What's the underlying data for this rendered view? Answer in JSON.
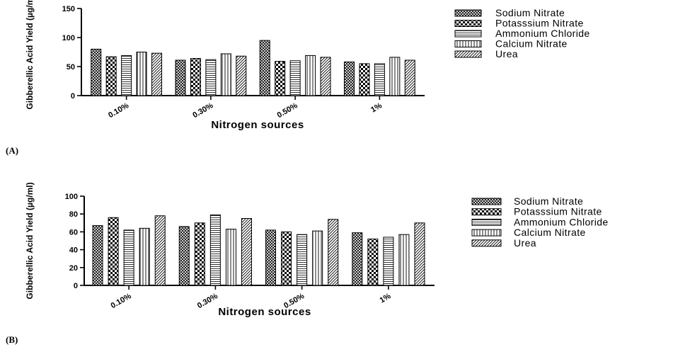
{
  "panels": [
    {
      "label": "(A)",
      "chart_data": {
        "type": "bar",
        "title": "",
        "xlabel": "Nitrogen sources",
        "ylabel": "Gibberellic Acid Yield  (µg/ml)",
        "ylim": [
          0,
          150
        ],
        "yticks": [
          "0",
          "50",
          "100",
          "150"
        ],
        "ytick_values": [
          0,
          50,
          100,
          150
        ],
        "categories": [
          "0.10%",
          "0.30%",
          "0.50%",
          "1%"
        ],
        "series": [
          {
            "name": "Sodium Nitrate",
            "values": [
              80,
              61,
              95,
              58
            ],
            "pattern": "crosshatch"
          },
          {
            "name": " Potasssium Nitrate",
            "values": [
              67,
              64,
              59,
              55
            ],
            "pattern": "checker"
          },
          {
            "name": "Ammonium Chloride",
            "values": [
              69,
              62,
              60,
              55
            ],
            "pattern": "horizontal"
          },
          {
            "name": "Calcium Nitrate",
            "values": [
              75,
              72,
              69,
              66
            ],
            "pattern": "vertical"
          },
          {
            "name": "Urea",
            "values": [
              73,
              68,
              66,
              61
            ],
            "pattern": "diagonal"
          }
        ],
        "grid": false,
        "legend_position": "right"
      }
    },
    {
      "label": "(B)",
      "chart_data": {
        "type": "bar",
        "title": "",
        "xlabel": "Nitrogen sources",
        "ylabel": "Gibberellic Acid Yield  (µg/ml)",
        "ylim": [
          0,
          100
        ],
        "yticks": [
          "0",
          "20",
          "40",
          "60",
          "80",
          "100"
        ],
        "ytick_values": [
          0,
          20,
          40,
          60,
          80,
          100
        ],
        "categories": [
          "0.10%",
          "0.30%",
          "0.50%",
          "1%"
        ],
        "series": [
          {
            "name": "Sodium Nitrate",
            "values": [
              67,
              66,
              62,
              59
            ],
            "pattern": "crosshatch"
          },
          {
            "name": " Potasssium Nitrate",
            "values": [
              76,
              70,
              60,
              52
            ],
            "pattern": "checker"
          },
          {
            "name": "Ammonium Chloride",
            "values": [
              62,
              79,
              57,
              54
            ],
            "pattern": "horizontal"
          },
          {
            "name": "Calcium Nitrate",
            "values": [
              64,
              63,
              61,
              57
            ],
            "pattern": "vertical"
          },
          {
            "name": "Urea",
            "values": [
              78,
              75,
              74,
              70
            ],
            "pattern": "diagonal"
          }
        ],
        "grid": false,
        "legend_position": "right"
      }
    }
  ]
}
